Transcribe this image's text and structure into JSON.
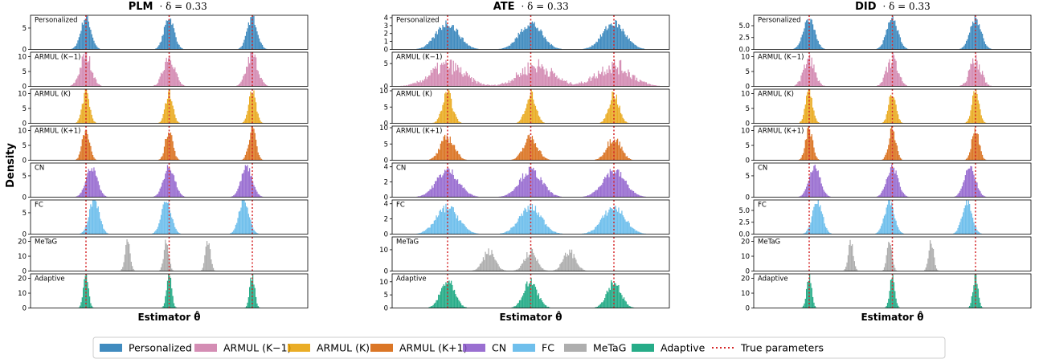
{
  "ylabel": "Density",
  "xlabel": "Estimator θ̂",
  "true_param_color": "#d62728",
  "methods": [
    {
      "name": "Personalized",
      "color": "#1f77b4"
    },
    {
      "name": "ARMUL (K−1)",
      "color": "#cc79a7"
    },
    {
      "name": "ARMUL (K)",
      "color": "#e69f00"
    },
    {
      "name": "ARMUL (K+1)",
      "color": "#d55e00"
    },
    {
      "name": "CN",
      "color": "#8856c9"
    },
    {
      "name": "FC",
      "color": "#56b4e9"
    },
    {
      "name": "MeTaG",
      "color": "#a0a0a0"
    },
    {
      "name": "Adaptive",
      "color": "#009e73"
    }
  ],
  "legend": {
    "items": [
      "Personalized",
      "ARMUL (K−1)",
      "ARMUL (K)",
      "ARMUL (K+1)",
      "CN",
      "FC",
      "MeTaG",
      "Adaptive",
      "True parameters"
    ],
    "placement": "bottom-center"
  },
  "chart_data": [
    {
      "type": "histogram",
      "title": "PLM",
      "subtitle": "δ = 0.33",
      "true_parameters": [
        0.2,
        0.5,
        0.8
      ],
      "panels": [
        {
          "method": "Personalized",
          "yticks": [
            0,
            5
          ],
          "ylim": [
            0,
            8
          ],
          "centers": [
            0.2,
            0.5,
            0.8
          ],
          "spread": 0.018,
          "peak": 7.5,
          "jitter": 0.25
        },
        {
          "method": "ARMUL (K−1)",
          "yticks": [
            0,
            5,
            10
          ],
          "ylim": [
            0,
            11.5
          ],
          "centers": [
            0.2,
            0.5,
            0.8
          ],
          "spread": 0.02,
          "peak": 10.5,
          "jitter": 0.5
        },
        {
          "method": "ARMUL (K)",
          "yticks": [
            0,
            5,
            10
          ],
          "ylim": [
            0,
            11.5
          ],
          "centers": [
            0.2,
            0.5,
            0.8
          ],
          "spread": 0.013,
          "peak": 10.5,
          "jitter": 0.35
        },
        {
          "method": "ARMUL (K+1)",
          "yticks": [
            0,
            5,
            10
          ],
          "ylim": [
            0,
            11.5
          ],
          "centers": [
            0.2,
            0.5,
            0.8
          ],
          "spread": 0.013,
          "peak": 10.5,
          "jitter": 0.35
        },
        {
          "method": "CN",
          "yticks": [
            0,
            5
          ],
          "ylim": [
            0,
            8
          ],
          "centers": [
            0.22,
            0.5,
            0.78
          ],
          "spread": 0.02,
          "peak": 7,
          "jitter": 0.25
        },
        {
          "method": "FC",
          "yticks": [
            0,
            5
          ],
          "ylim": [
            0,
            8
          ],
          "centers": [
            0.23,
            0.49,
            0.77
          ],
          "spread": 0.018,
          "peak": 8,
          "jitter": 0.25
        },
        {
          "method": "MeTaG",
          "yticks": [
            0,
            10,
            20
          ],
          "ylim": [
            0,
            23
          ],
          "centers": [
            0.35,
            0.49,
            0.64
          ],
          "spread": 0.009,
          "peak": 20,
          "jitter": 0.3
        },
        {
          "method": "Adaptive",
          "yticks": [
            0,
            10,
            20
          ],
          "ylim": [
            0,
            23
          ],
          "centers": [
            0.2,
            0.5,
            0.8
          ],
          "spread": 0.009,
          "peak": 22,
          "jitter": 0.3
        }
      ]
    },
    {
      "type": "histogram",
      "title": "ATE",
      "subtitle": "δ = 0.33",
      "true_parameters": [
        0.2,
        0.5,
        0.8
      ],
      "panels": [
        {
          "method": "Personalized",
          "yticks": [
            0,
            1,
            2,
            3,
            4
          ],
          "ylim": [
            0,
            4.3
          ],
          "centers": [
            0.2,
            0.5,
            0.8
          ],
          "spread": 0.04,
          "peak": 3.3,
          "jitter": 0.35
        },
        {
          "method": "ARMUL (K−1)",
          "yticks": [
            0,
            5
          ],
          "ylim": [
            0,
            7.5
          ],
          "centers": [
            0.2,
            0.52,
            0.8
          ],
          "spread": 0.06,
          "peak": 4.5,
          "jitter": 0.8
        },
        {
          "method": "ARMUL (K)",
          "yticks": [
            0,
            5,
            10
          ],
          "ylim": [
            0,
            10.5
          ],
          "centers": [
            0.2,
            0.5,
            0.8
          ],
          "spread": 0.018,
          "peak": 9,
          "jitter": 0.4
        },
        {
          "method": "ARMUL (K+1)",
          "yticks": [
            0,
            5,
            10
          ],
          "ylim": [
            0,
            10.5
          ],
          "centers": [
            0.2,
            0.5,
            0.8
          ],
          "spread": 0.025,
          "peak": 7,
          "jitter": 0.45
        },
        {
          "method": "CN",
          "yticks": [
            0,
            2,
            4
          ],
          "ylim": [
            0,
            4.5
          ],
          "centers": [
            0.2,
            0.5,
            0.8
          ],
          "spread": 0.04,
          "peak": 3.5,
          "jitter": 0.35
        },
        {
          "method": "FC",
          "yticks": [
            0,
            2,
            4
          ],
          "ylim": [
            0,
            4.5
          ],
          "centers": [
            0.2,
            0.5,
            0.8
          ],
          "spread": 0.04,
          "peak": 3.5,
          "jitter": 0.35
        },
        {
          "method": "MeTaG",
          "yticks": [
            0,
            10
          ],
          "ylim": [
            0,
            16
          ],
          "centers": [
            0.35,
            0.5,
            0.64
          ],
          "spread": 0.022,
          "peak": 9,
          "jitter": 0.45
        },
        {
          "method": "Adaptive",
          "yticks": [
            0,
            5,
            10
          ],
          "ylim": [
            0,
            13
          ],
          "centers": [
            0.2,
            0.5,
            0.8
          ],
          "spread": 0.025,
          "peak": 10,
          "jitter": 0.4
        }
      ]
    },
    {
      "type": "histogram",
      "title": "DID",
      "subtitle": "δ = 0.33",
      "true_parameters": [
        0.2,
        0.5,
        0.8
      ],
      "panels": [
        {
          "method": "Personalized",
          "yticks": [
            0.0,
            2.5,
            5.0
          ],
          "ylim": [
            0,
            7.2
          ],
          "centers": [
            0.2,
            0.5,
            0.8
          ],
          "spread": 0.02,
          "peak": 6.5,
          "jitter": 0.25
        },
        {
          "method": "ARMUL (K−1)",
          "yticks": [
            0,
            5,
            10
          ],
          "ylim": [
            0,
            11.5
          ],
          "centers": [
            0.2,
            0.5,
            0.8
          ],
          "spread": 0.02,
          "peak": 9,
          "jitter": 0.6
        },
        {
          "method": "ARMUL (K)",
          "yticks": [
            0,
            5,
            10
          ],
          "ylim": [
            0,
            11.5
          ],
          "centers": [
            0.2,
            0.5,
            0.8
          ],
          "spread": 0.013,
          "peak": 10.5,
          "jitter": 0.35
        },
        {
          "method": "ARMUL (K+1)",
          "yticks": [
            0,
            5,
            10
          ],
          "ylim": [
            0,
            11.5
          ],
          "centers": [
            0.2,
            0.5,
            0.8
          ],
          "spread": 0.013,
          "peak": 10.5,
          "jitter": 0.35
        },
        {
          "method": "CN",
          "yticks": [
            0,
            5
          ],
          "ylim": [
            0,
            8
          ],
          "centers": [
            0.22,
            0.5,
            0.78
          ],
          "spread": 0.02,
          "peak": 7,
          "jitter": 0.25
        },
        {
          "method": "FC",
          "yticks": [
            0.0,
            2.5,
            5.0
          ],
          "ylim": [
            0,
            7.2
          ],
          "centers": [
            0.23,
            0.49,
            0.77
          ],
          "spread": 0.018,
          "peak": 6.8,
          "jitter": 0.25
        },
        {
          "method": "MeTaG",
          "yticks": [
            0,
            10,
            20
          ],
          "ylim": [
            0,
            23
          ],
          "centers": [
            0.35,
            0.49,
            0.64
          ],
          "spread": 0.009,
          "peak": 20,
          "jitter": 0.3
        },
        {
          "method": "Adaptive",
          "yticks": [
            0,
            10,
            20
          ],
          "ylim": [
            0,
            23
          ],
          "centers": [
            0.2,
            0.5,
            0.8
          ],
          "spread": 0.009,
          "peak": 22,
          "jitter": 0.3
        }
      ]
    }
  ]
}
